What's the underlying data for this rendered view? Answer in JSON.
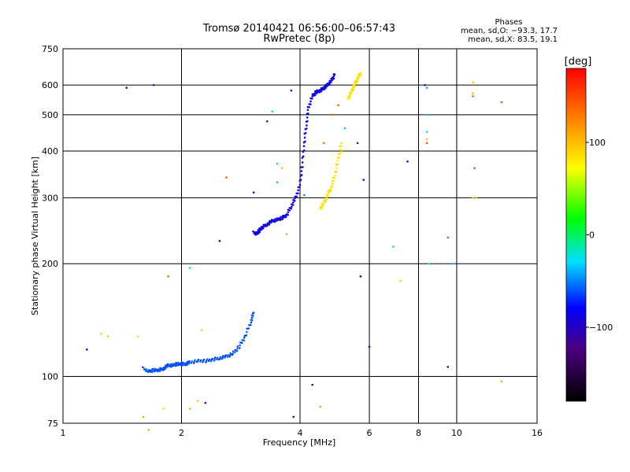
{
  "header": {
    "title_line1": "Tromsø 20140421 06:56:00–06:57:43",
    "title_line2": "RwPretec (8p)"
  },
  "phases_box": {
    "heading": "Phases",
    "line_o": "mean, sd,O: −93.3, 17.7",
    "line_x": "mean, sd,X:  83.5, 19.1"
  },
  "colorbar": {
    "label": "[deg]",
    "ticks": [
      {
        "value": 100,
        "label": "100"
      },
      {
        "value": 0,
        "label": "0"
      },
      {
        "value": -100,
        "label": "−100"
      }
    ],
    "range": [
      -180,
      180
    ]
  },
  "chart_data": {
    "type": "scatter",
    "title": "Tromsø 20140421 06:56:00–06:57:43",
    "subtitle": "RwPretec (8p)",
    "xlabel": "Frequency [MHz]",
    "ylabel": "Stationary phase Virtual Height [km]",
    "xscale": "log",
    "yscale": "log",
    "xlim": [
      1,
      16
    ],
    "ylim": [
      75,
      750
    ],
    "grid": true,
    "color_encoding": "phase [deg]",
    "x_ticks": [
      {
        "value": 1,
        "label": "1"
      },
      {
        "value": 2,
        "label": "2"
      },
      {
        "value": 4,
        "label": "4"
      },
      {
        "value": 6,
        "label": "6"
      },
      {
        "value": 8,
        "label": "8"
      },
      {
        "value": 10,
        "label": "10"
      },
      {
        "value": 16,
        "label": "16"
      }
    ],
    "y_ticks": [
      {
        "value": 75,
        "label": "75"
      },
      {
        "value": 100,
        "label": "100"
      },
      {
        "value": 200,
        "label": "200"
      },
      {
        "value": 300,
        "label": "300"
      },
      {
        "value": 400,
        "label": "400"
      },
      {
        "value": 500,
        "label": "500"
      },
      {
        "value": 600,
        "label": "600"
      },
      {
        "value": 750,
        "label": "750"
      }
    ],
    "traces": [
      {
        "id": "e-layer",
        "phase": -80,
        "points": [
          [
            1.6,
            105
          ],
          [
            1.65,
            103
          ],
          [
            1.7,
            104
          ],
          [
            1.75,
            104
          ],
          [
            1.8,
            105
          ],
          [
            1.85,
            107
          ],
          [
            1.9,
            107
          ],
          [
            1.95,
            108
          ],
          [
            2.0,
            108
          ],
          [
            2.05,
            108
          ],
          [
            2.1,
            109
          ],
          [
            2.2,
            110
          ],
          [
            2.3,
            110
          ],
          [
            2.4,
            111
          ],
          [
            2.5,
            112
          ],
          [
            2.6,
            113
          ],
          [
            2.7,
            115
          ],
          [
            2.8,
            120
          ],
          [
            2.9,
            128
          ],
          [
            3.0,
            140
          ],
          [
            3.05,
            148
          ]
        ]
      },
      {
        "id": "f-layer",
        "phase": -115,
        "points": [
          [
            3.05,
            242
          ],
          [
            3.1,
            240
          ],
          [
            3.15,
            245
          ],
          [
            3.2,
            250
          ],
          [
            3.3,
            255
          ],
          [
            3.4,
            260
          ],
          [
            3.5,
            262
          ],
          [
            3.6,
            265
          ],
          [
            3.7,
            270
          ],
          [
            3.8,
            285
          ],
          [
            3.9,
            300
          ],
          [
            4.0,
            325
          ],
          [
            4.05,
            365
          ],
          [
            4.1,
            420
          ],
          [
            4.15,
            470
          ],
          [
            4.2,
            520
          ],
          [
            4.3,
            560
          ],
          [
            4.4,
            575
          ],
          [
            4.5,
            580
          ],
          [
            4.6,
            590
          ],
          [
            4.7,
            600
          ],
          [
            4.8,
            615
          ],
          [
            4.9,
            640
          ]
        ]
      },
      {
        "id": "f-layer-x",
        "phase": 85,
        "points": [
          [
            4.5,
            280
          ],
          [
            4.6,
            290
          ],
          [
            4.7,
            305
          ],
          [
            4.8,
            320
          ],
          [
            4.9,
            345
          ],
          [
            5.0,
            380
          ],
          [
            5.1,
            420
          ]
        ]
      },
      {
        "id": "upper-x",
        "phase": 85,
        "points": [
          [
            5.3,
            550
          ],
          [
            5.4,
            575
          ],
          [
            5.5,
            600
          ],
          [
            5.6,
            625
          ],
          [
            5.7,
            645
          ]
        ]
      }
    ],
    "scattered_points": [
      [
        1.15,
        118,
        -110
      ],
      [
        1.25,
        130,
        95
      ],
      [
        1.3,
        128,
        100
      ],
      [
        1.45,
        590,
        -130
      ],
      [
        1.55,
        128,
        90
      ],
      [
        1.6,
        78,
        110
      ],
      [
        1.65,
        72,
        110
      ],
      [
        1.7,
        600,
        -100
      ],
      [
        1.8,
        82,
        90
      ],
      [
        1.85,
        185,
        140
      ],
      [
        2.1,
        82,
        110
      ],
      [
        2.1,
        195,
        -30
      ],
      [
        2.2,
        86,
        100
      ],
      [
        2.3,
        85,
        -120
      ],
      [
        2.25,
        133,
        95
      ],
      [
        2.5,
        230,
        -120
      ],
      [
        2.6,
        340,
        150
      ],
      [
        3.05,
        310,
        -120
      ],
      [
        3.3,
        480,
        -130
      ],
      [
        3.4,
        510,
        -20
      ],
      [
        3.5,
        370,
        -20
      ],
      [
        3.6,
        360,
        100
      ],
      [
        3.5,
        330,
        -40
      ],
      [
        3.7,
        240,
        110
      ],
      [
        3.8,
        580,
        -130
      ],
      [
        3.85,
        78,
        -130
      ],
      [
        4.1,
        305,
        -60
      ],
      [
        4.3,
        95,
        -130
      ],
      [
        4.5,
        83,
        120
      ],
      [
        4.6,
        420,
        140
      ],
      [
        4.8,
        500,
        140
      ],
      [
        5.0,
        530,
        140
      ],
      [
        5.1,
        400,
        120
      ],
      [
        5.2,
        460,
        -40
      ],
      [
        5.6,
        420,
        -140
      ],
      [
        5.7,
        185,
        -130
      ],
      [
        5.8,
        335,
        -120
      ],
      [
        6.0,
        120,
        -120
      ],
      [
        6.9,
        222,
        -20
      ],
      [
        7.2,
        180,
        90
      ],
      [
        7.5,
        375,
        -110
      ],
      [
        8.3,
        600,
        -120
      ],
      [
        8.4,
        590,
        -50
      ],
      [
        8.4,
        500,
        -40
      ],
      [
        8.4,
        450,
        -20
      ],
      [
        8.4,
        430,
        100
      ],
      [
        8.4,
        420,
        150
      ],
      [
        8.5,
        200,
        -20
      ],
      [
        9.5,
        106,
        -130
      ],
      [
        9.5,
        235,
        150
      ],
      [
        9.8,
        200,
        -40
      ],
      [
        11.0,
        610,
        100
      ],
      [
        11.0,
        570,
        100
      ],
      [
        11.1,
        360,
        150
      ],
      [
        11.0,
        300,
        95
      ],
      [
        11.2,
        300,
        100
      ],
      [
        11.0,
        560,
        150
      ],
      [
        13.0,
        540,
        150
      ],
      [
        13.0,
        97,
        110
      ]
    ]
  }
}
